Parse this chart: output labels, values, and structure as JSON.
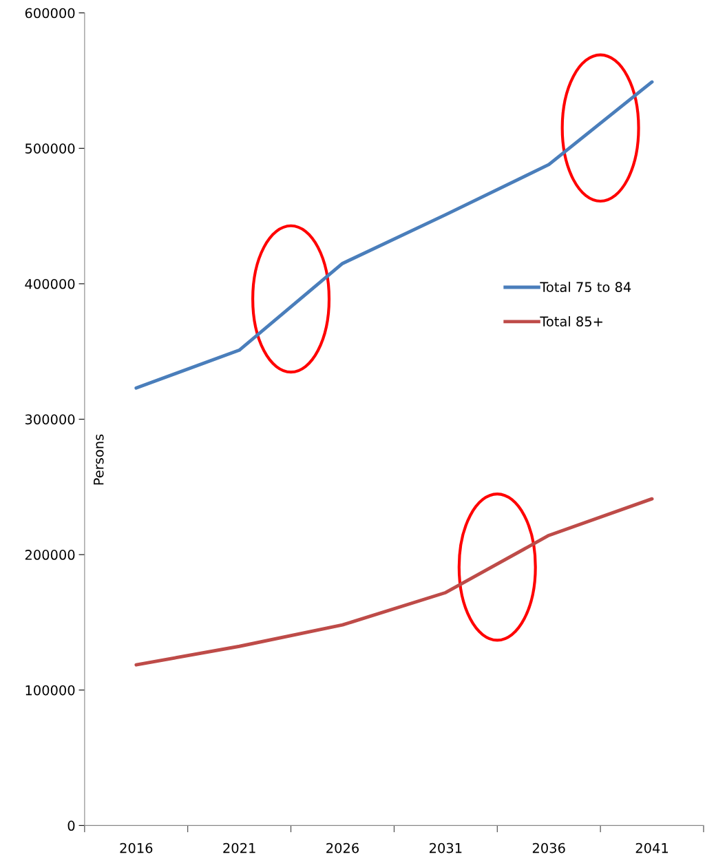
{
  "chart_data": {
    "type": "line",
    "ylabel": "Persons",
    "categories": [
      "2016",
      "2021",
      "2026",
      "2031",
      "2036",
      "2041"
    ],
    "series": [
      {
        "name": "Total 75 to 84",
        "color": "#4a7ebb",
        "values": [
          323000,
          351000,
          415000,
          451000,
          488000,
          549000
        ]
      },
      {
        "name": "Total 85+",
        "color": "#be4b48",
        "values": [
          118600,
          132300,
          148100,
          172000,
          214200,
          241200
        ]
      }
    ],
    "ylim": [
      0,
      600000
    ],
    "yticks": [
      0,
      100000,
      200000,
      300000,
      400000,
      500000,
      600000
    ],
    "grid": false,
    "legend": "right",
    "marker": "none",
    "line_style": "solid"
  }
}
